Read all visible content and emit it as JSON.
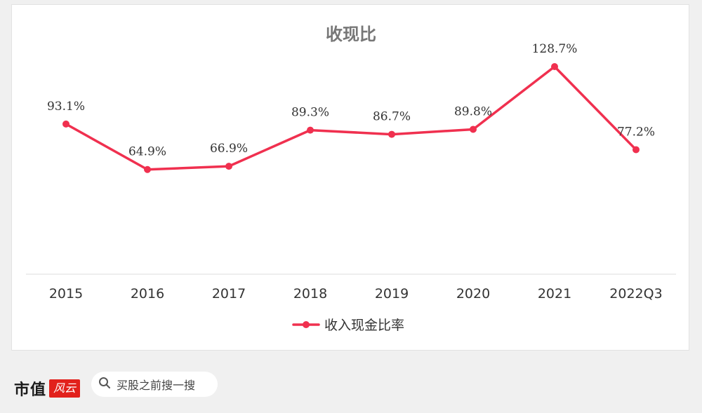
{
  "footer": {
    "brand_text": "市值",
    "brand_seal": "风云",
    "search_text": "买股之前搜一搜",
    "search_icon": "search-icon"
  },
  "colors": {
    "series": "#f0304f",
    "title": "#777777",
    "axis_text": "#333333",
    "label_text": "#333333",
    "axis_line": "#dddddd"
  },
  "chart_data": {
    "type": "line",
    "title": "收现比",
    "categories": [
      "2015",
      "2016",
      "2017",
      "2018",
      "2019",
      "2020",
      "2021",
      "2022Q3"
    ],
    "series": [
      {
        "name": "收入现金比率",
        "values": [
          93.1,
          64.9,
          66.9,
          89.3,
          86.7,
          89.8,
          128.7,
          77.2
        ],
        "labels": [
          "93.1%",
          "64.9%",
          "66.9%",
          "89.3%",
          "86.7%",
          "89.8%",
          "128.7%",
          "77.2%"
        ]
      }
    ],
    "ylim": [
      0,
      140
    ],
    "grid": false,
    "legend": "bottom"
  }
}
